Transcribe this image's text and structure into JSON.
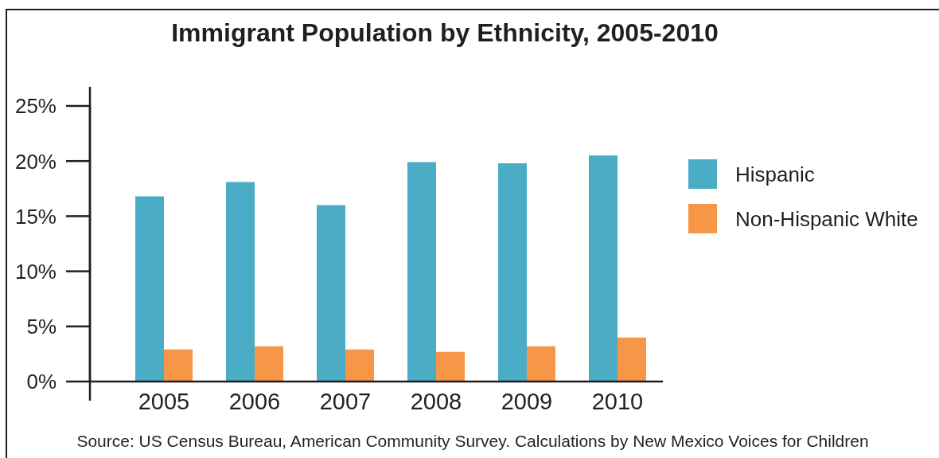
{
  "chart_data": {
    "type": "bar",
    "title": "Immigrant Population by Ethnicity, 2005-2010",
    "categories": [
      "2005",
      "2006",
      "2007",
      "2008",
      "2009",
      "2010"
    ],
    "series": [
      {
        "name": "Hispanic",
        "color": "#4bacc6",
        "values": [
          16.8,
          18.1,
          16.0,
          19.9,
          19.8,
          20.5
        ]
      },
      {
        "name": "Non-Hispanic White",
        "color": "#f79646",
        "values": [
          2.9,
          3.2,
          2.9,
          2.7,
          3.2,
          4.0
        ]
      }
    ],
    "ylim": [
      0,
      25
    ],
    "yticks": [
      {
        "value": 0,
        "label": "0%"
      },
      {
        "value": 5,
        "label": "5%"
      },
      {
        "value": 10,
        "label": "10%"
      },
      {
        "value": 15,
        "label": "15%"
      },
      {
        "value": 20,
        "label": "20%"
      },
      {
        "value": 25,
        "label": "25%"
      }
    ],
    "legend": "right",
    "annotations": [
      "Source: US Census Bureau, American Community Survey. Calculations by New Mexico Voices for Children"
    ]
  }
}
